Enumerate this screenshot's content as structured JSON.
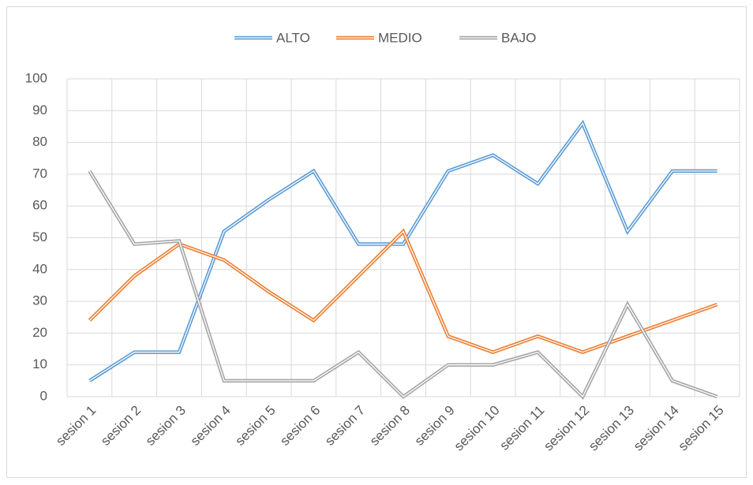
{
  "chart_data": {
    "type": "line",
    "categories": [
      "sesion 1",
      "sesion 2",
      "sesion 3",
      "sesion 4",
      "sesion 5",
      "sesion 6",
      "sesion 7",
      "sesion 8",
      "sesion 9",
      "sesion 10",
      "sesion 11",
      "sesion 12",
      "sesion 13",
      "sesion 14",
      "sesion 15"
    ],
    "series": [
      {
        "name": "ALTO",
        "color": "#5b9bd5",
        "values": [
          5,
          14,
          14,
          52,
          62,
          71,
          48,
          48,
          71,
          76,
          67,
          86,
          52,
          71,
          71
        ]
      },
      {
        "name": "MEDIO",
        "color": "#ed7d31",
        "values": [
          24,
          38,
          48,
          43,
          33,
          24,
          38,
          52,
          19,
          14,
          19,
          14,
          19,
          24,
          29
        ]
      },
      {
        "name": "BAJO",
        "color": "#a5a5a5",
        "values": [
          71,
          48,
          49,
          5,
          5,
          5,
          14,
          0,
          10,
          10,
          14,
          0,
          29,
          5,
          0
        ]
      }
    ],
    "ylim": [
      0,
      100
    ],
    "yticks": [
      0,
      10,
      20,
      30,
      40,
      50,
      60,
      70,
      80,
      90,
      100
    ],
    "grid": true,
    "legend": "top"
  }
}
